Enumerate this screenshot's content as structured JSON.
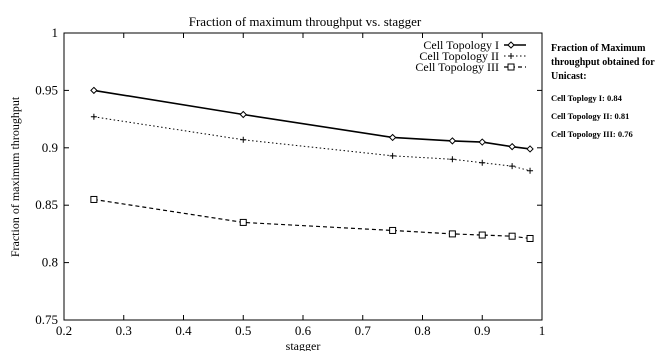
{
  "chart_data": {
    "type": "line",
    "title": "Fraction of maximum throughput vs. stagger",
    "xlabel": "stagger",
    "ylabel": "Fraction of maximum throughput",
    "xlim": [
      0.2,
      1
    ],
    "ylim": [
      0.75,
      1
    ],
    "xticks": [
      "0.2",
      "0.3",
      "0.4",
      "0.5",
      "0.6",
      "0.7",
      "0.8",
      "0.9",
      "1"
    ],
    "yticks": [
      "0.75",
      "0.8",
      "0.85",
      "0.9",
      "0.95",
      "1"
    ],
    "legend_position": "top-right",
    "grid": false,
    "series": [
      {
        "name": "Cell Topology I",
        "marker": "diamond",
        "line_style": "solid",
        "color": "#000000",
        "points": [
          [
            0.25,
            0.95
          ],
          [
            0.5,
            0.929
          ],
          [
            0.75,
            0.909
          ],
          [
            0.85,
            0.906
          ],
          [
            0.9,
            0.905
          ],
          [
            0.95,
            0.901
          ],
          [
            0.98,
            0.899
          ]
        ]
      },
      {
        "name": "Cell Topology II",
        "marker": "plus",
        "line_style": "dotted",
        "color": "#000000",
        "points": [
          [
            0.25,
            0.927
          ],
          [
            0.5,
            0.907
          ],
          [
            0.75,
            0.893
          ],
          [
            0.85,
            0.89
          ],
          [
            0.9,
            0.887
          ],
          [
            0.95,
            0.884
          ],
          [
            0.98,
            0.88
          ]
        ]
      },
      {
        "name": "Cell Topology III",
        "marker": "square",
        "line_style": "dashed",
        "color": "#000000",
        "points": [
          [
            0.25,
            0.855
          ],
          [
            0.5,
            0.835
          ],
          [
            0.75,
            0.828
          ],
          [
            0.85,
            0.825
          ],
          [
            0.9,
            0.824
          ],
          [
            0.95,
            0.823
          ],
          [
            0.98,
            0.821
          ]
        ]
      }
    ]
  },
  "side_note": {
    "title": "Fraction of Maximum throughput obtained for Unicast:",
    "rows": [
      "Cell Toplogy I: 0.84",
      "Cell Topology II: 0.81",
      "Cell Topology III: 0.76"
    ]
  }
}
